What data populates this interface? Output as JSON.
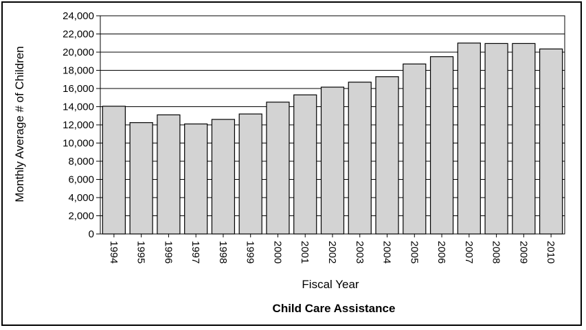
{
  "chart_data": {
    "type": "bar",
    "title": "Child Care Assistance",
    "xlabel": "Fiscal Year",
    "ylabel": "Monthly Average # of Children",
    "categories": [
      "1994",
      "1995",
      "1996",
      "1997",
      "1998",
      "1999",
      "2000",
      "2001",
      "2002",
      "2003",
      "2004",
      "2005",
      "2006",
      "2007",
      "2008",
      "2009",
      "2010"
    ],
    "values": [
      14050,
      12250,
      13100,
      12100,
      12600,
      13200,
      14500,
      15300,
      16150,
      16700,
      17300,
      18700,
      19500,
      21000,
      20950,
      20950,
      20350
    ],
    "ylim": [
      0,
      24000
    ],
    "yticks": [
      0,
      2000,
      4000,
      6000,
      8000,
      10000,
      12000,
      14000,
      16000,
      18000,
      20000,
      22000,
      24000
    ],
    "ytick_labels": [
      "0",
      "2,000",
      "4,000",
      "6,000",
      "8,000",
      "10,000",
      "12,000",
      "14,000",
      "16,000",
      "18,000",
      "20,000",
      "22,000",
      "24,000"
    ],
    "grid": true,
    "bar_color": "#d3d3d3",
    "edge_color": "#000000"
  }
}
